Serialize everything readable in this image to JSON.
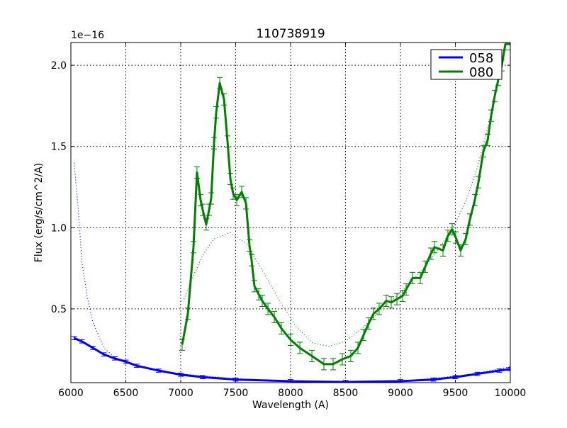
{
  "chart_data": {
    "type": "line",
    "title": "110738919",
    "xlabel": "Wavelength (A)",
    "ylabel": "Flux (erg/s/cm^2/A)",
    "y_offset_label": "1e−16",
    "xlim": [
      6000,
      10000
    ],
    "ylim": [
      0.046,
      2.14
    ],
    "xticks": [
      6000,
      6500,
      7000,
      7500,
      8000,
      8500,
      9000,
      9500,
      10000
    ],
    "xtick_labels": [
      "6000",
      "6500",
      "7000",
      "7500",
      "8000",
      "8500",
      "9000",
      "9500",
      "10000"
    ],
    "yticks": [
      0.5,
      1.0,
      1.5,
      2.0
    ],
    "ytick_labels": [
      "0.5",
      "1.0",
      "1.5",
      "2.0"
    ],
    "grid": true,
    "legend_position": "top-right",
    "series": [
      {
        "name": "058",
        "color": "#0000ff",
        "x": [
          6030,
          6100,
          6200,
          6300,
          6400,
          6500,
          6600,
          6800,
          7000,
          7200,
          7500,
          8000,
          8500,
          9000,
          9300,
          9500,
          9700,
          9900,
          10000
        ],
        "y": [
          0.32,
          0.3,
          0.26,
          0.22,
          0.195,
          0.175,
          0.15,
          0.12,
          0.095,
          0.08,
          0.065,
          0.055,
          0.05,
          0.055,
          0.065,
          0.08,
          0.1,
          0.12,
          0.13
        ],
        "yerr": 0.01,
        "model": {
          "x": [
            6030,
            6070,
            6100,
            6150,
            6200,
            6300,
            6400,
            6500,
            6600,
            6800,
            7000,
            7500,
            8000,
            8500,
            9000,
            9500,
            9700,
            9900,
            10000
          ],
          "y": [
            1.4,
            1.09,
            0.79,
            0.57,
            0.42,
            0.26,
            0.2,
            0.17,
            0.15,
            0.12,
            0.1,
            0.07,
            0.055,
            0.05,
            0.055,
            0.085,
            0.105,
            0.13,
            0.145
          ]
        }
      },
      {
        "name": "080",
        "color": "#008000",
        "x": [
          7013,
          7065,
          7116,
          7148,
          7181,
          7200,
          7232,
          7258,
          7277,
          7303,
          7323,
          7355,
          7394,
          7426,
          7452,
          7477,
          7510,
          7555,
          7594,
          7626,
          7645,
          7671,
          7710,
          7742,
          7794,
          7852,
          7916,
          8000,
          8084,
          8194,
          8303,
          8387,
          8471,
          8548,
          8613,
          8665,
          8710,
          8755,
          8806,
          8871,
          8916,
          8968,
          9019,
          9052,
          9110,
          9181,
          9226,
          9277,
          9310,
          9387,
          9432,
          9471,
          9503,
          9548,
          9594,
          9632,
          9677,
          9710,
          9755,
          9794,
          9826,
          9858,
          9890,
          9923,
          9955,
          10000
        ],
        "y": [
          0.28,
          0.47,
          0.88,
          1.34,
          1.17,
          1.11,
          1.02,
          1.11,
          1.18,
          1.52,
          1.71,
          1.89,
          1.79,
          1.53,
          1.3,
          1.21,
          1.17,
          1.22,
          1.15,
          0.89,
          0.8,
          0.64,
          0.59,
          0.55,
          0.5,
          0.45,
          0.38,
          0.31,
          0.26,
          0.21,
          0.16,
          0.16,
          0.19,
          0.21,
          0.26,
          0.34,
          0.41,
          0.47,
          0.5,
          0.55,
          0.54,
          0.56,
          0.58,
          0.62,
          0.69,
          0.69,
          0.76,
          0.84,
          0.88,
          0.86,
          0.95,
          0.99,
          0.94,
          0.86,
          0.93,
          1.05,
          1.17,
          1.28,
          1.47,
          1.54,
          1.69,
          1.81,
          1.91,
          2.0,
          2.13,
          2.13
        ],
        "yerr": 0.035,
        "model": {
          "x": [
            7030,
            7100,
            7200,
            7300,
            7450,
            7600,
            7750,
            7900,
            8050,
            8200,
            8350,
            8500,
            8650,
            8800,
            8950,
            9100,
            9250,
            9400,
            9500,
            9600,
            9700,
            9800,
            9900,
            9960
          ],
          "y": [
            0.56,
            0.68,
            0.83,
            0.93,
            0.97,
            0.9,
            0.73,
            0.55,
            0.39,
            0.29,
            0.27,
            0.3,
            0.38,
            0.48,
            0.57,
            0.67,
            0.78,
            0.92,
            1.03,
            1.17,
            1.37,
            1.63,
            1.93,
            2.14
          ]
        }
      }
    ]
  }
}
